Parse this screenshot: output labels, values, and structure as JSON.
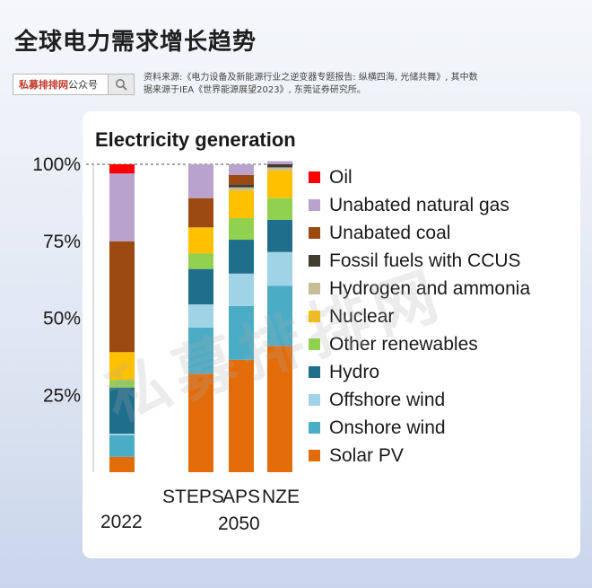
{
  "header": {
    "title": "全球电力需求增长趋势",
    "search_brand": "私募排排网",
    "search_suffix": "公众号",
    "source_note": "资料来源:《电力设备及新能源行业之逆变器专题报告: 纵横四海, 光储共舞》, 其中数据来源于IEA《世界能源展望2023》, 东莞证券研究所。"
  },
  "watermark": "私募排排网",
  "chart_data": {
    "type": "bar",
    "stacked": true,
    "percent": true,
    "title": "Electricity generation",
    "categories": [
      "2022",
      "STEPS",
      "APS",
      "NZE"
    ],
    "group_labels": [
      "2022",
      "2050"
    ],
    "y_ticks": [
      "25%",
      "50%",
      "75%",
      "100%"
    ],
    "ylim": [
      0,
      100
    ],
    "legend_position": "right",
    "series": [
      {
        "name": "Solar PV",
        "color": "#e36c0a",
        "values": [
          5,
          32,
          36.5,
          41
        ]
      },
      {
        "name": "Onshore wind",
        "color": "#4bacc6",
        "values": [
          7,
          15,
          17.5,
          19.5
        ]
      },
      {
        "name": "Offshore wind",
        "color": "#9fd3e6",
        "values": [
          0.5,
          7.5,
          10.5,
          11
        ]
      },
      {
        "name": "Hydro",
        "color": "#1f6e8c",
        "values": [
          15,
          11.5,
          11,
          10.5
        ]
      },
      {
        "name": "Other renewables",
        "color": "#92d050",
        "values": [
          2.5,
          5,
          7,
          7
        ]
      },
      {
        "name": "Nuclear",
        "color": "#ffc000",
        "values": [
          9,
          8.5,
          9,
          9
        ]
      },
      {
        "name": "Hydrogen and ammonia",
        "color": "#c4bd97",
        "values": [
          0,
          0,
          1,
          1
        ]
      },
      {
        "name": "Fossil fuels with CCUS",
        "color": "#403d30",
        "values": [
          0,
          0,
          1,
          1
        ]
      },
      {
        "name": "Unabated coal",
        "color": "#9c4a12",
        "values": [
          36,
          9.5,
          3,
          0
        ]
      },
      {
        "name": "Unabated natural gas",
        "color": "#b9a3cc",
        "values": [
          22,
          11,
          3.5,
          1
        ]
      },
      {
        "name": "Oil",
        "color": "#ff0000",
        "values": [
          3,
          0,
          0,
          0
        ]
      }
    ]
  }
}
